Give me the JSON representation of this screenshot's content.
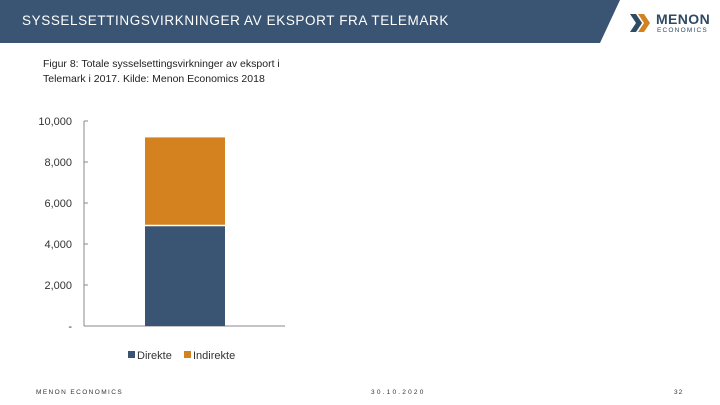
{
  "header": {
    "title": "SYSSELSETTINGSVIRKNINGER AV EKSPORT FRA TELEMARK"
  },
  "logo": {
    "name": "MENON",
    "subtitle": "ECONOMICS"
  },
  "caption": {
    "line1": "Figur 8: Totale sysselsettingsvirkninger av eksport i",
    "line2": "Telemark i 2017. Kilde: Menon Economics 2018"
  },
  "colors": {
    "header_bg": "#3a5573",
    "direkte": "#3a5573",
    "indirekte": "#d4821f",
    "axis": "#888888"
  },
  "chart_data": {
    "type": "bar",
    "stacked": true,
    "categories": [
      ""
    ],
    "series": [
      {
        "name": "Direkte",
        "values": [
          4900
        ]
      },
      {
        "name": "Indirekte",
        "values": [
          4300
        ]
      }
    ],
    "ylim": [
      0,
      10000
    ],
    "yticks": [
      "-",
      "2,000",
      "4,000",
      "6,000",
      "8,000",
      "10,000"
    ],
    "legend_position": "bottom",
    "grid": false
  },
  "footer": {
    "left": "MENON ECONOMICS",
    "date": "30.10.2020",
    "page": "32"
  }
}
